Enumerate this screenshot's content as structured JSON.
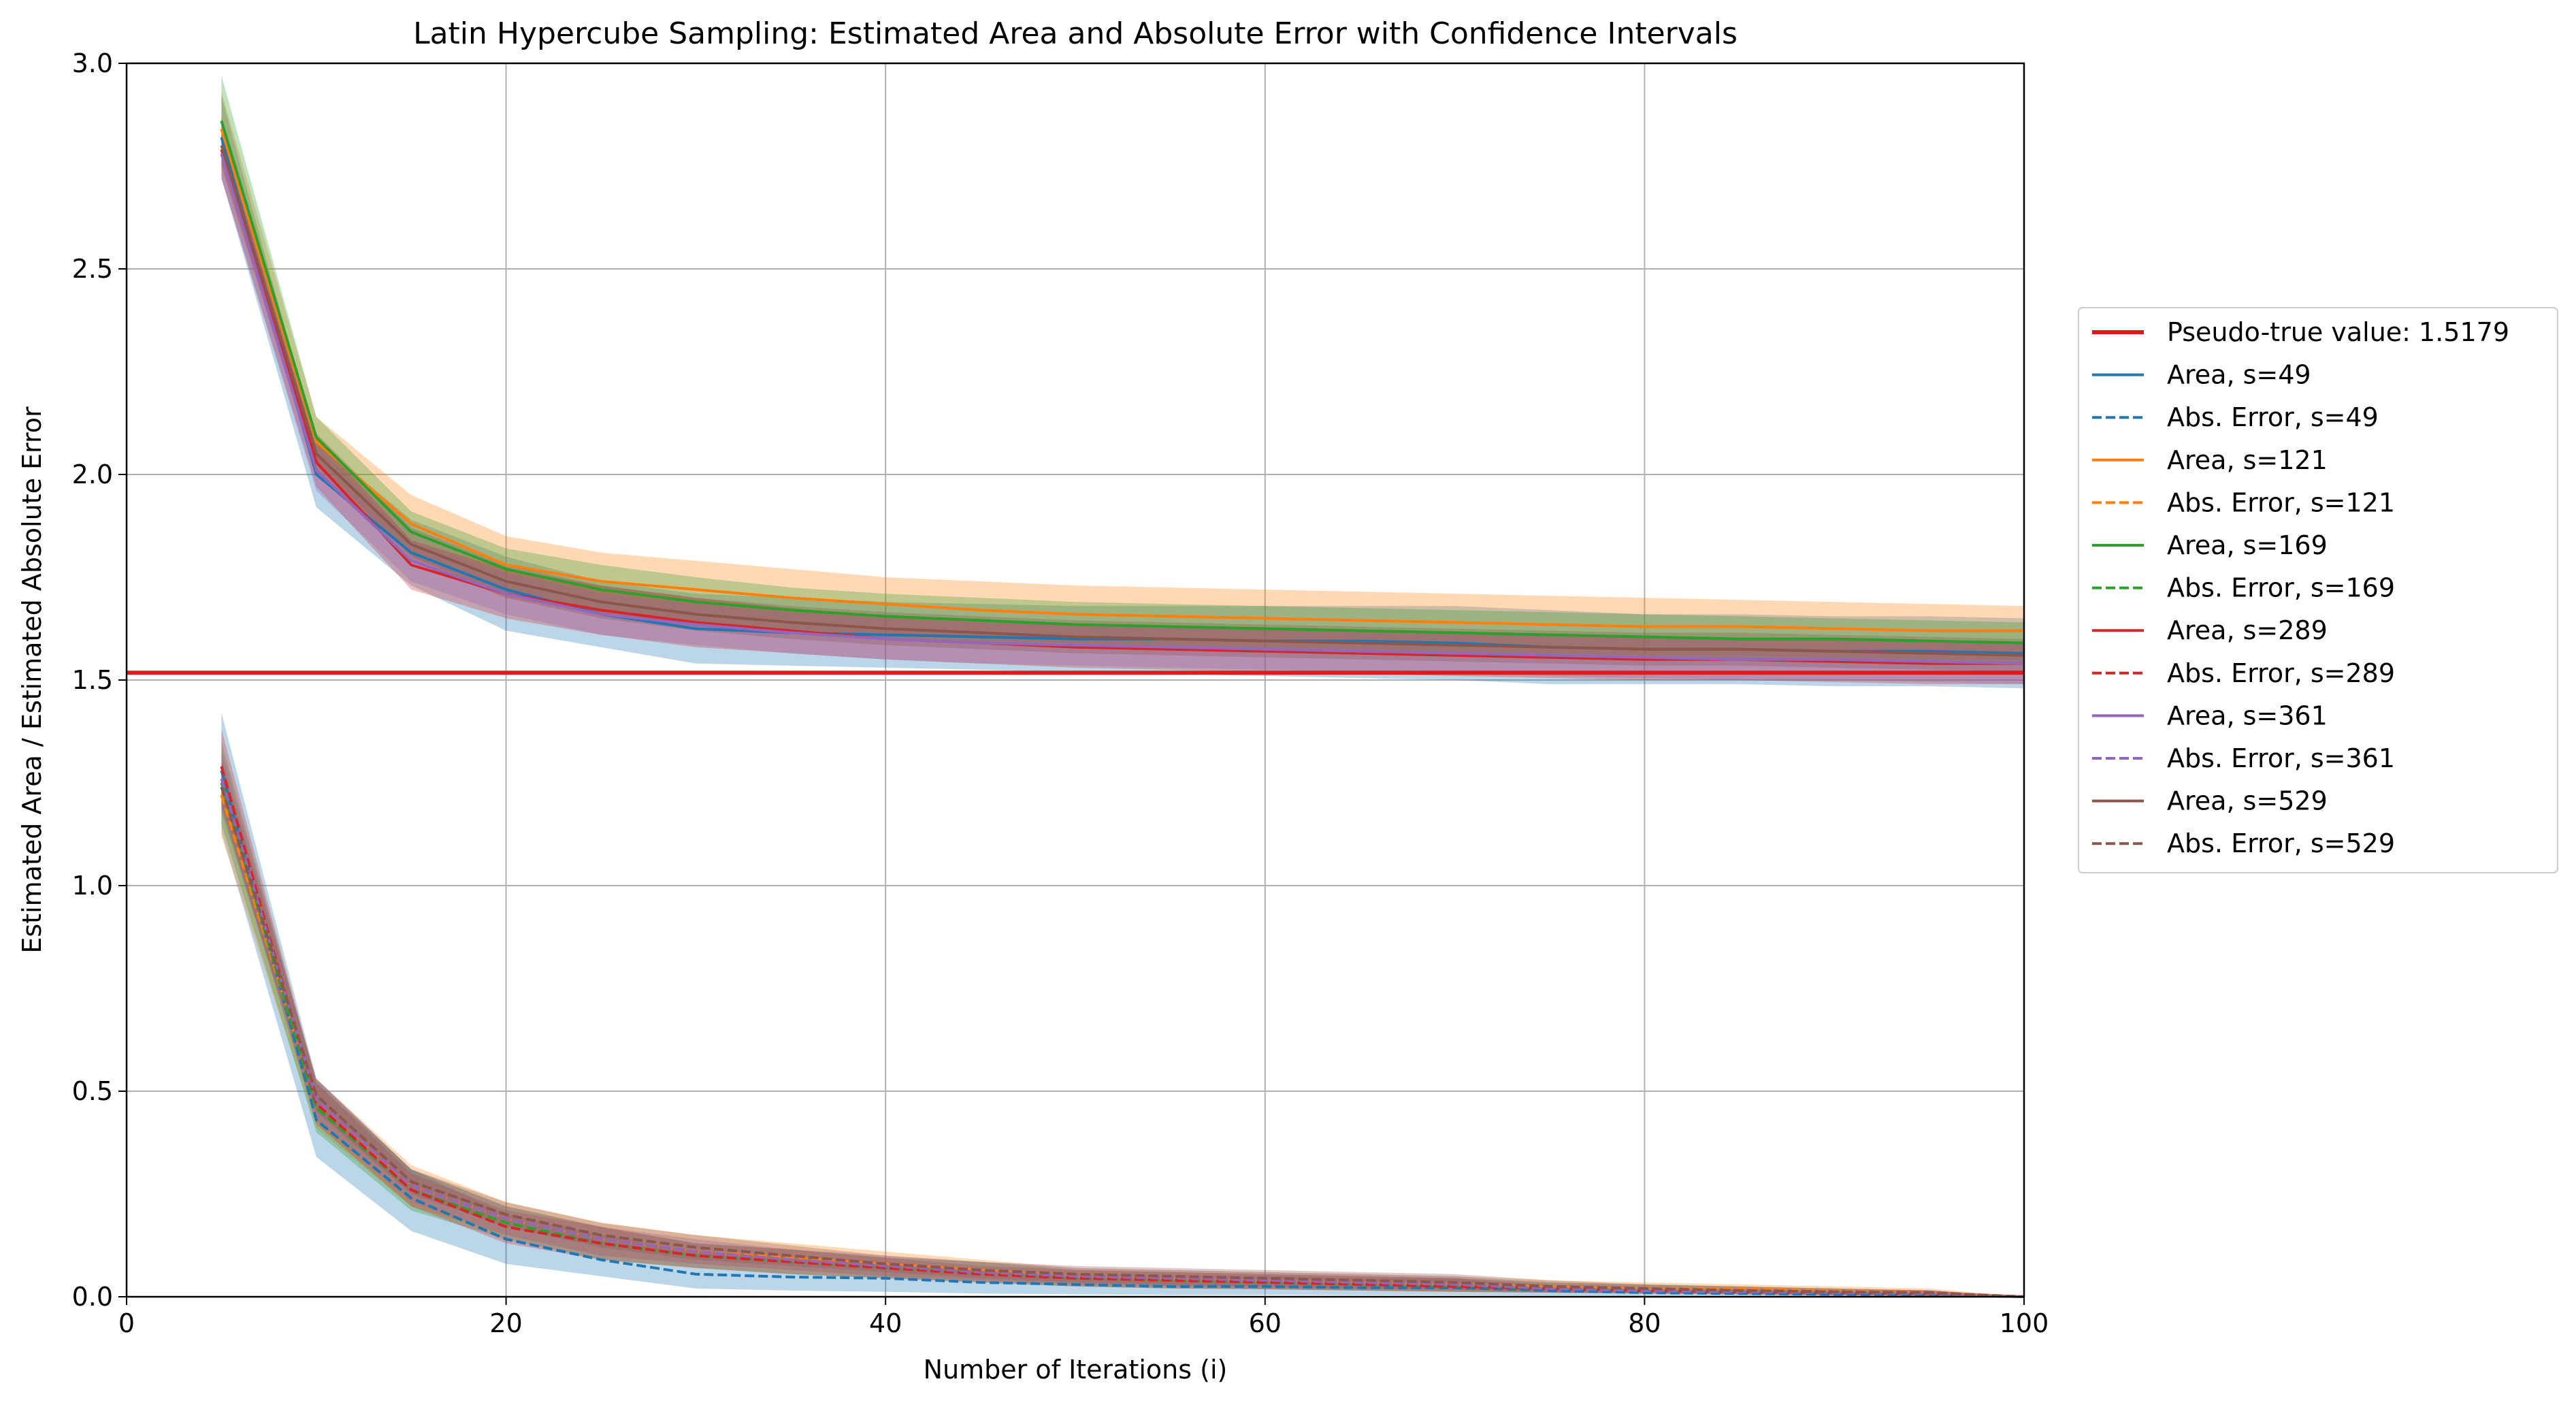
{
  "chart_data": {
    "type": "line",
    "title": "Latin Hypercube Sampling: Estimated Area and Absolute Error with Confidence Intervals",
    "xlabel": "Number of Iterations (i)",
    "ylabel": "Estimated Area / Estimated Absolute Error",
    "xlim": [
      0,
      100
    ],
    "ylim": [
      0,
      3.0
    ],
    "xticks": [
      0,
      20,
      40,
      60,
      80,
      100
    ],
    "yticks": [
      0.0,
      0.5,
      1.0,
      1.5,
      2.0,
      2.5,
      3.0
    ],
    "xtick_labels": [
      "0",
      "20",
      "40",
      "60",
      "80",
      "100"
    ],
    "ytick_labels": [
      "0.0",
      "0.5",
      "1.0",
      "1.5",
      "2.0",
      "2.5",
      "3.0"
    ],
    "grid": true,
    "legend_position": "outside-right",
    "x": [
      5,
      10,
      15,
      20,
      25,
      30,
      35,
      40,
      45,
      50,
      55,
      60,
      65,
      70,
      75,
      80,
      85,
      90,
      95,
      100
    ],
    "reference_line": {
      "name": "Pseudo-true value: 1.5179",
      "value": 1.5179,
      "color": "#e31a1c"
    },
    "series": [
      {
        "name": "Area, s=49",
        "kind": "area",
        "color": "#1f77b4",
        "dash": "solid",
        "values": [
          2.82,
          2.0,
          1.81,
          1.72,
          1.66,
          1.625,
          1.615,
          1.61,
          1.605,
          1.6,
          1.6,
          1.595,
          1.595,
          1.59,
          1.58,
          1.575,
          1.575,
          1.57,
          1.57,
          1.565
        ],
        "ci_lower": [
          2.72,
          1.92,
          1.73,
          1.62,
          1.58,
          1.54,
          1.535,
          1.53,
          1.525,
          1.52,
          1.515,
          1.51,
          1.505,
          1.5,
          1.49,
          1.49,
          1.49,
          1.485,
          1.485,
          1.48
        ],
        "ci_upper": [
          2.92,
          2.08,
          1.89,
          1.8,
          1.74,
          1.71,
          1.7,
          1.69,
          1.685,
          1.68,
          1.68,
          1.68,
          1.68,
          1.68,
          1.67,
          1.66,
          1.66,
          1.655,
          1.655,
          1.65
        ]
      },
      {
        "name": "Abs. Error, s=49",
        "kind": "error",
        "color": "#1f77b4",
        "dash": "dashed",
        "values": [
          1.28,
          0.43,
          0.24,
          0.14,
          0.09,
          0.055,
          0.048,
          0.045,
          0.035,
          0.03,
          0.025,
          0.025,
          0.022,
          0.022,
          0.015,
          0.01,
          0.008,
          0.006,
          0.005,
          0.0
        ],
        "ci_lower": [
          1.13,
          0.34,
          0.16,
          0.08,
          0.05,
          0.02,
          0.015,
          0.012,
          0.008,
          0.006,
          0.005,
          0.005,
          0.004,
          0.004,
          0.003,
          0.002,
          0.002,
          0.001,
          0.001,
          0.0
        ],
        "ci_upper": [
          1.42,
          0.53,
          0.31,
          0.2,
          0.15,
          0.11,
          0.1,
          0.085,
          0.065,
          0.055,
          0.05,
          0.05,
          0.045,
          0.045,
          0.02,
          0.02,
          0.018,
          0.016,
          0.015,
          0.0
        ]
      },
      {
        "name": "Area, s=121",
        "kind": "area",
        "color": "#ff7f0e",
        "dash": "solid",
        "values": [
          2.84,
          2.08,
          1.88,
          1.78,
          1.74,
          1.72,
          1.7,
          1.685,
          1.67,
          1.66,
          1.655,
          1.65,
          1.645,
          1.64,
          1.635,
          1.63,
          1.63,
          1.625,
          1.62,
          1.62
        ],
        "ci_lower": [
          2.75,
          2.02,
          1.8,
          1.7,
          1.66,
          1.64,
          1.625,
          1.61,
          1.6,
          1.59,
          1.585,
          1.58,
          1.575,
          1.57,
          1.565,
          1.56,
          1.56,
          1.555,
          1.55,
          1.55
        ],
        "ci_upper": [
          2.93,
          2.14,
          1.95,
          1.85,
          1.81,
          1.79,
          1.77,
          1.75,
          1.74,
          1.73,
          1.725,
          1.72,
          1.715,
          1.71,
          1.705,
          1.7,
          1.695,
          1.69,
          1.685,
          1.68
        ]
      },
      {
        "name": "Abs. Error, s=121",
        "kind": "error",
        "color": "#ff7f0e",
        "dash": "dashed",
        "values": [
          1.22,
          0.47,
          0.27,
          0.19,
          0.14,
          0.11,
          0.095,
          0.08,
          0.065,
          0.05,
          0.045,
          0.04,
          0.035,
          0.03,
          0.025,
          0.02,
          0.02,
          0.015,
          0.01,
          0.0
        ],
        "ci_lower": [
          1.12,
          0.41,
          0.22,
          0.15,
          0.1,
          0.08,
          0.065,
          0.05,
          0.04,
          0.03,
          0.025,
          0.02,
          0.015,
          0.012,
          0.01,
          0.008,
          0.006,
          0.004,
          0.002,
          0.0
        ],
        "ci_upper": [
          1.32,
          0.53,
          0.32,
          0.23,
          0.18,
          0.15,
          0.13,
          0.11,
          0.09,
          0.07,
          0.065,
          0.06,
          0.055,
          0.05,
          0.04,
          0.035,
          0.03,
          0.025,
          0.02,
          0.0
        ]
      },
      {
        "name": "Area, s=169",
        "kind": "area",
        "color": "#2ca02c",
        "dash": "solid",
        "values": [
          2.86,
          2.09,
          1.86,
          1.77,
          1.72,
          1.69,
          1.67,
          1.655,
          1.645,
          1.635,
          1.63,
          1.625,
          1.62,
          1.615,
          1.61,
          1.605,
          1.6,
          1.6,
          1.595,
          1.59
        ],
        "ci_lower": [
          2.77,
          2.03,
          1.8,
          1.71,
          1.66,
          1.63,
          1.615,
          1.6,
          1.59,
          1.58,
          1.575,
          1.57,
          1.565,
          1.56,
          1.555,
          1.55,
          1.55,
          1.545,
          1.54,
          1.54
        ],
        "ci_upper": [
          2.97,
          2.14,
          1.91,
          1.82,
          1.78,
          1.75,
          1.725,
          1.71,
          1.7,
          1.69,
          1.685,
          1.68,
          1.675,
          1.67,
          1.665,
          1.66,
          1.655,
          1.65,
          1.645,
          1.64
        ]
      },
      {
        "name": "Abs. Error, s=169",
        "kind": "error",
        "color": "#2ca02c",
        "dash": "dashed",
        "values": [
          1.25,
          0.46,
          0.26,
          0.18,
          0.13,
          0.1,
          0.085,
          0.07,
          0.06,
          0.045,
          0.04,
          0.035,
          0.03,
          0.025,
          0.02,
          0.018,
          0.015,
          0.012,
          0.008,
          0.0
        ],
        "ci_lower": [
          1.15,
          0.4,
          0.21,
          0.14,
          0.09,
          0.07,
          0.055,
          0.045,
          0.035,
          0.025,
          0.02,
          0.018,
          0.015,
          0.012,
          0.01,
          0.008,
          0.006,
          0.004,
          0.002,
          0.0
        ],
        "ci_upper": [
          1.35,
          0.52,
          0.31,
          0.22,
          0.17,
          0.13,
          0.115,
          0.095,
          0.085,
          0.065,
          0.06,
          0.055,
          0.05,
          0.045,
          0.035,
          0.03,
          0.025,
          0.02,
          0.015,
          0.0
        ]
      },
      {
        "name": "Area, s=289",
        "kind": "area",
        "color": "#d62728",
        "dash": "solid",
        "values": [
          2.79,
          2.03,
          1.78,
          1.71,
          1.67,
          1.64,
          1.62,
          1.6,
          1.59,
          1.58,
          1.575,
          1.57,
          1.565,
          1.56,
          1.555,
          1.55,
          1.55,
          1.545,
          1.54,
          1.54
        ],
        "ci_lower": [
          2.72,
          1.97,
          1.72,
          1.65,
          1.61,
          1.58,
          1.565,
          1.55,
          1.54,
          1.53,
          1.525,
          1.52,
          1.515,
          1.51,
          1.505,
          1.5,
          1.5,
          1.495,
          1.49,
          1.49
        ],
        "ci_upper": [
          2.87,
          2.09,
          1.84,
          1.77,
          1.73,
          1.7,
          1.675,
          1.655,
          1.645,
          1.635,
          1.63,
          1.625,
          1.62,
          1.615,
          1.61,
          1.605,
          1.6,
          1.6,
          1.595,
          1.59
        ]
      },
      {
        "name": "Abs. Error, s=289",
        "kind": "error",
        "color": "#d62728",
        "dash": "dashed",
        "values": [
          1.29,
          0.47,
          0.26,
          0.17,
          0.13,
          0.1,
          0.085,
          0.07,
          0.055,
          0.045,
          0.04,
          0.035,
          0.03,
          0.025,
          0.02,
          0.015,
          0.012,
          0.01,
          0.008,
          0.0
        ],
        "ci_lower": [
          1.2,
          0.42,
          0.22,
          0.13,
          0.09,
          0.07,
          0.055,
          0.045,
          0.035,
          0.025,
          0.02,
          0.018,
          0.015,
          0.012,
          0.01,
          0.008,
          0.006,
          0.004,
          0.002,
          0.0
        ],
        "ci_upper": [
          1.38,
          0.52,
          0.3,
          0.21,
          0.17,
          0.13,
          0.115,
          0.095,
          0.075,
          0.065,
          0.06,
          0.055,
          0.05,
          0.045,
          0.03,
          0.025,
          0.02,
          0.018,
          0.015,
          0.0
        ]
      },
      {
        "name": "Area, s=361",
        "kind": "area",
        "color": "#9467bd",
        "dash": "solid",
        "values": [
          2.78,
          2.01,
          1.79,
          1.71,
          1.66,
          1.635,
          1.615,
          1.6,
          1.59,
          1.585,
          1.58,
          1.575,
          1.57,
          1.565,
          1.56,
          1.555,
          1.55,
          1.55,
          1.545,
          1.54
        ],
        "ci_lower": [
          2.72,
          1.96,
          1.74,
          1.66,
          1.61,
          1.585,
          1.565,
          1.55,
          1.54,
          1.535,
          1.53,
          1.525,
          1.52,
          1.515,
          1.51,
          1.505,
          1.5,
          1.5,
          1.495,
          1.49
        ],
        "ci_upper": [
          2.85,
          2.07,
          1.84,
          1.76,
          1.71,
          1.685,
          1.665,
          1.65,
          1.64,
          1.635,
          1.63,
          1.625,
          1.62,
          1.615,
          1.61,
          1.605,
          1.6,
          1.6,
          1.595,
          1.59
        ]
      },
      {
        "name": "Abs. Error, s=361",
        "kind": "error",
        "color": "#9467bd",
        "dash": "dashed",
        "values": [
          1.26,
          0.48,
          0.27,
          0.19,
          0.14,
          0.11,
          0.09,
          0.075,
          0.06,
          0.05,
          0.045,
          0.04,
          0.035,
          0.03,
          0.02,
          0.015,
          0.012,
          0.01,
          0.008,
          0.0
        ],
        "ci_lower": [
          1.19,
          0.43,
          0.23,
          0.15,
          0.1,
          0.08,
          0.065,
          0.05,
          0.04,
          0.03,
          0.025,
          0.02,
          0.018,
          0.015,
          0.01,
          0.008,
          0.006,
          0.004,
          0.002,
          0.0
        ],
        "ci_upper": [
          1.33,
          0.53,
          0.31,
          0.22,
          0.17,
          0.14,
          0.115,
          0.1,
          0.085,
          0.07,
          0.065,
          0.06,
          0.055,
          0.05,
          0.035,
          0.03,
          0.025,
          0.02,
          0.015,
          0.0
        ]
      },
      {
        "name": "Area, s=529",
        "kind": "area",
        "color": "#8c564b",
        "dash": "solid",
        "values": [
          2.8,
          2.05,
          1.83,
          1.74,
          1.69,
          1.66,
          1.64,
          1.625,
          1.615,
          1.605,
          1.6,
          1.595,
          1.59,
          1.585,
          1.58,
          1.575,
          1.575,
          1.57,
          1.565,
          1.56
        ],
        "ci_lower": [
          2.75,
          2.0,
          1.79,
          1.7,
          1.65,
          1.62,
          1.6,
          1.585,
          1.575,
          1.565,
          1.56,
          1.555,
          1.55,
          1.545,
          1.54,
          1.535,
          1.535,
          1.53,
          1.525,
          1.52
        ],
        "ci_upper": [
          2.86,
          2.1,
          1.87,
          1.78,
          1.73,
          1.7,
          1.68,
          1.665,
          1.655,
          1.645,
          1.64,
          1.635,
          1.63,
          1.625,
          1.62,
          1.615,
          1.615,
          1.61,
          1.605,
          1.6
        ]
      },
      {
        "name": "Abs. Error, s=529",
        "kind": "error",
        "color": "#8c564b",
        "dash": "dashed",
        "values": [
          1.24,
          0.49,
          0.28,
          0.2,
          0.15,
          0.12,
          0.1,
          0.08,
          0.065,
          0.055,
          0.05,
          0.045,
          0.04,
          0.035,
          0.025,
          0.02,
          0.015,
          0.012,
          0.01,
          0.0
        ],
        "ci_lower": [
          1.18,
          0.45,
          0.25,
          0.17,
          0.12,
          0.09,
          0.075,
          0.06,
          0.045,
          0.035,
          0.03,
          0.025,
          0.02,
          0.018,
          0.012,
          0.01,
          0.008,
          0.005,
          0.003,
          0.0
        ],
        "ci_upper": [
          1.3,
          0.53,
          0.31,
          0.23,
          0.18,
          0.15,
          0.125,
          0.1,
          0.085,
          0.075,
          0.07,
          0.065,
          0.06,
          0.055,
          0.04,
          0.03,
          0.025,
          0.02,
          0.016,
          0.0
        ]
      }
    ]
  }
}
